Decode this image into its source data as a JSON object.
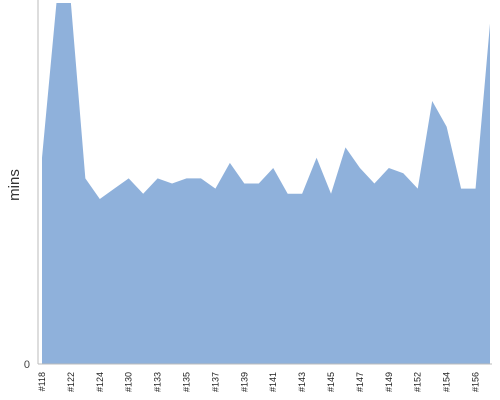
{
  "chart_data": {
    "type": "area",
    "title": "",
    "xlabel": "",
    "ylabel": "mins",
    "y_tick_labels": [
      "0"
    ],
    "ylim": [
      0,
      70
    ],
    "grid": false,
    "legend": "none",
    "colors": {
      "fill": "#8fb1db",
      "axis": "#bbbbbb"
    },
    "x_tick_labels": [
      "#118",
      "#122",
      "#124",
      "#130",
      "#133",
      "#135",
      "#137",
      "#139",
      "#141",
      "#143",
      "#145",
      "#147",
      "#149",
      "#152",
      "#154",
      "#156"
    ],
    "x_tick_index": [
      0,
      2,
      4,
      6,
      8,
      10,
      12,
      14,
      16,
      18,
      20,
      22,
      24,
      26,
      28,
      30
    ],
    "series": [
      {
        "values": [
          40,
          70,
          70,
          36,
          32,
          34,
          36,
          33,
          36,
          35,
          36,
          36,
          34,
          39,
          35,
          35,
          38,
          33,
          33,
          40,
          33,
          42,
          38,
          35,
          38,
          37,
          34,
          51,
          46,
          34,
          34,
          66
        ]
      }
    ]
  }
}
